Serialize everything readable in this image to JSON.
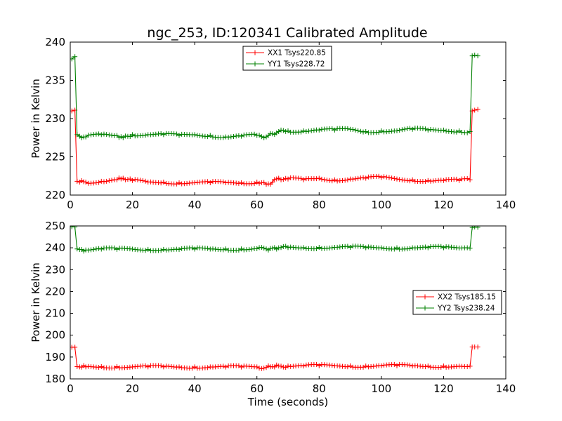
{
  "chart_data": [
    {
      "type": "line",
      "title": "ngc_253, ID:120341 Calibrated Amplitude",
      "xlabel": "",
      "ylabel": "Power in Kelvin",
      "xlim": [
        0,
        140
      ],
      "ylim": [
        220,
        240
      ],
      "xticks": [
        "0",
        "20",
        "40",
        "60",
        "80",
        "100",
        "120",
        "140"
      ],
      "yticks": [
        "220",
        "225",
        "230",
        "235",
        "240"
      ],
      "legend_position": "upper-center",
      "markers": "plus",
      "series": [
        {
          "name": "XX1 Tsys220.85",
          "color": "#ff0000",
          "x": [
            0.5,
            1.5,
            2.2,
            3,
            5,
            10,
            15,
            17,
            20,
            25,
            30,
            35,
            40,
            45,
            50,
            55,
            60,
            63,
            65,
            67,
            70,
            75,
            80,
            85,
            90,
            95,
            100,
            105,
            110,
            115,
            120,
            125,
            128.5,
            129.2,
            130,
            131
          ],
          "values": [
            231.0,
            231.1,
            221.8,
            221.7,
            221.7,
            221.8,
            222.0,
            222.2,
            221.9,
            221.7,
            221.7,
            221.6,
            221.6,
            221.6,
            221.6,
            221.6,
            221.7,
            221.4,
            221.7,
            222.2,
            222.1,
            222.0,
            222.2,
            222.0,
            222.1,
            222.2,
            222.3,
            222.1,
            222.0,
            221.9,
            221.9,
            221.9,
            222.0,
            231.0,
            231.1,
            231.2
          ]
        },
        {
          "name": "YY1 Tsys228.72",
          "color": "#008000",
          "x": [
            0.5,
            1.5,
            2.2,
            3,
            5,
            10,
            15,
            17,
            20,
            25,
            30,
            35,
            40,
            45,
            50,
            55,
            60,
            63,
            65,
            67,
            70,
            75,
            80,
            85,
            90,
            95,
            100,
            105,
            110,
            115,
            120,
            125,
            128.5,
            129.2,
            130,
            131
          ],
          "values": [
            237.8,
            238.1,
            227.9,
            227.7,
            227.6,
            227.9,
            227.8,
            227.5,
            227.9,
            227.9,
            227.9,
            227.8,
            227.9,
            227.8,
            227.6,
            227.7,
            227.8,
            227.6,
            228.0,
            228.3,
            228.4,
            228.4,
            228.5,
            228.5,
            228.6,
            228.3,
            228.4,
            228.4,
            228.6,
            228.5,
            228.5,
            228.4,
            228.3,
            238.2,
            238.3,
            238.2
          ]
        }
      ]
    },
    {
      "type": "line",
      "title": "",
      "xlabel": "Time (seconds)",
      "ylabel": "Power in Kelvin",
      "xlim": [
        0,
        140
      ],
      "ylim": [
        180,
        250
      ],
      "xticks": [
        "0",
        "20",
        "40",
        "60",
        "80",
        "100",
        "120",
        "140"
      ],
      "yticks": [
        "180",
        "190",
        "200",
        "210",
        "220",
        "230",
        "240",
        "250"
      ],
      "legend_position": "center-right",
      "markers": "plus",
      "series": [
        {
          "name": "XX2 Tsys185.15",
          "color": "#ff0000",
          "x": [
            0.5,
            1.5,
            2.2,
            3,
            5,
            10,
            15,
            20,
            25,
            30,
            35,
            40,
            45,
            50,
            55,
            60,
            63,
            65,
            67,
            70,
            75,
            80,
            85,
            90,
            95,
            100,
            105,
            110,
            115,
            120,
            125,
            128.5,
            129.2,
            130,
            131
          ],
          "values": [
            194.5,
            194.5,
            185.6,
            185.5,
            185.5,
            185.6,
            185.6,
            185.5,
            185.5,
            185.5,
            185.5,
            185.5,
            185.5,
            185.4,
            185.4,
            185.5,
            185.2,
            185.6,
            185.9,
            185.9,
            185.9,
            186.0,
            186.0,
            186.0,
            185.9,
            186.0,
            186.0,
            185.9,
            185.9,
            185.9,
            185.8,
            185.8,
            194.6,
            194.6,
            194.6
          ]
        },
        {
          "name": "YY2 Tsys238.24",
          "color": "#008000",
          "x": [
            0.5,
            1.5,
            2.2,
            3,
            5,
            10,
            15,
            20,
            25,
            30,
            35,
            40,
            45,
            50,
            55,
            60,
            63,
            65,
            67,
            70,
            75,
            80,
            85,
            90,
            95,
            100,
            105,
            110,
            115,
            120,
            125,
            128.5,
            129.2,
            130,
            131
          ],
          "values": [
            249.6,
            249.5,
            239.5,
            239.2,
            239.0,
            239.4,
            239.3,
            239.4,
            239.3,
            239.3,
            239.2,
            239.4,
            239.4,
            239.5,
            239.5,
            239.6,
            239.5,
            239.8,
            240.0,
            240.1,
            240.1,
            240.2,
            240.2,
            240.2,
            240.0,
            240.0,
            240.0,
            240.0,
            240.0,
            240.0,
            239.9,
            239.8,
            249.3,
            249.5,
            249.4
          ]
        }
      ]
    }
  ]
}
